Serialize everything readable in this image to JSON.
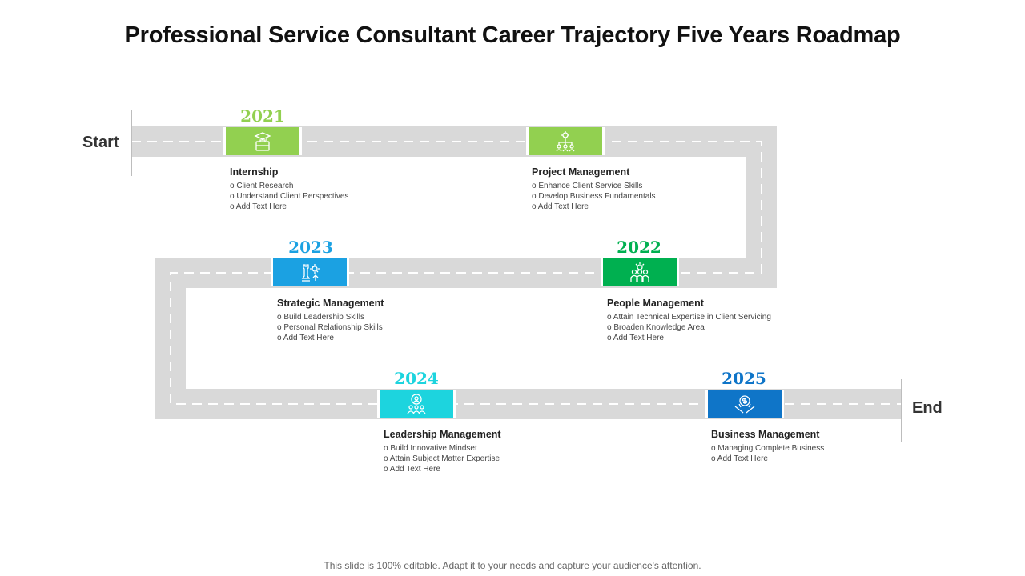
{
  "title": "Professional Service Consultant Career Trajectory Five Years Roadmap",
  "start_label": "Start",
  "end_label": "End",
  "colors": {
    "road": "#d9d9d9",
    "lane": "#ffffff",
    "light_green": "#92d050",
    "blue": "#1ba1e2",
    "green": "#00b050",
    "cyan": "#1dd4de",
    "dark_blue": "#0f75c8"
  },
  "milestones": [
    {
      "year": "2021",
      "title": "Internship",
      "bullets": [
        "Client Research",
        "Understand Client  Perspectives",
        "Add Text Here"
      ],
      "icon": "graduation-briefcase-icon"
    },
    {
      "year": "",
      "title": "Project Management",
      "bullets": [
        "Enhance Client  Service Skills",
        "Develop Business Fundamentals",
        "Add Text Here"
      ],
      "icon": "hierarchy-gear-icon"
    },
    {
      "year": "2022",
      "title": "People Management",
      "bullets": [
        "Attain Technical Expertise in Client  Servicing",
        "Broaden Knowledge Area",
        "Add Text Here"
      ],
      "icon": "team-icon"
    },
    {
      "year": "2023",
      "title": "Strategic Management",
      "bullets": [
        "Build Leadership Skills",
        "Personal Relationship Skills",
        "Add Text Here"
      ],
      "icon": "chess-gear-icon"
    },
    {
      "year": "2024",
      "title": "Leadership Management",
      "bullets": [
        "Build Innovative Mindset",
        "Attain Subject Matter Expertise",
        "Add Text Here"
      ],
      "icon": "leader-icon"
    },
    {
      "year": "2025",
      "title": "Business  Management",
      "bullets": [
        "Managing Complete  Business",
        "Add Text Here"
      ],
      "icon": "money-hands-icon"
    }
  ],
  "footer": "This slide is 100% editable. Adapt it to your needs and capture your audience's attention."
}
